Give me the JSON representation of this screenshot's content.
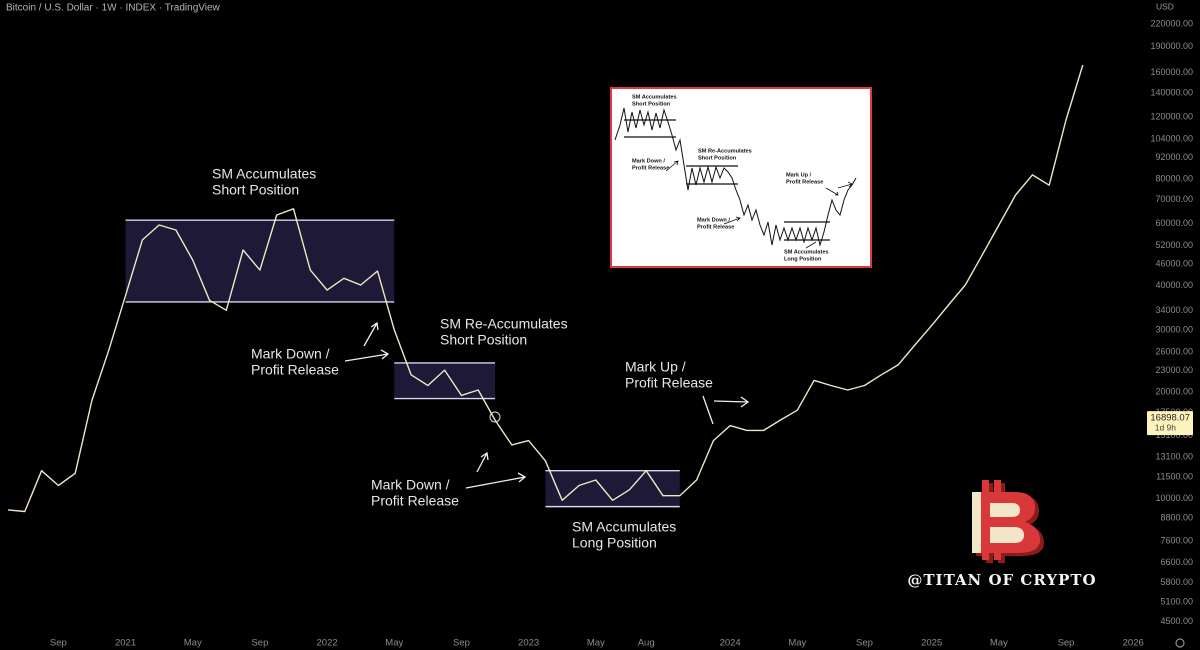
{
  "chart_data": {
    "type": "line",
    "title": "Bitcoin / U.S. Dollar · 1W · INDEX · TradingView",
    "ylabel": "USD",
    "log_scale": true,
    "color": "#efe7c4",
    "x": [
      "2020-06",
      "2020-07",
      "2020-08",
      "2020-09",
      "2020-10",
      "2020-11",
      "2020-12",
      "2021-01",
      "2021-02",
      "2021-03",
      "2021-04",
      "2021-05",
      "2021-06",
      "2021-07",
      "2021-08",
      "2021-09",
      "2021-10",
      "2021-11",
      "2021-12",
      "2022-01",
      "2022-02",
      "2022-03",
      "2022-04",
      "2022-05",
      "2022-06",
      "2022-07",
      "2022-08",
      "2022-09",
      "2022-10",
      "2022-11",
      "2022-12",
      "2023-01",
      "2023-02",
      "2023-03",
      "2023-04",
      "2023-05",
      "2023-06",
      "2023-07",
      "2023-08",
      "2023-09",
      "2023-10",
      "2023-11",
      "2023-12",
      "2024-01",
      "2024-02",
      "2024-03",
      "2024-04",
      "2024-05",
      "2024-06",
      "2024-07",
      "2024-08",
      "2024-09",
      "2024-10",
      "2024-11",
      "2024-12",
      "2025-01",
      "2025-02",
      "2025-03",
      "2025-04",
      "2025-05",
      "2025-06",
      "2025-07",
      "2025-08",
      "2025-09",
      "2025-10"
    ],
    "values": [
      9300,
      9200,
      12000,
      10900,
      11800,
      19000,
      26300,
      37600,
      53900,
      59400,
      57500,
      47300,
      36400,
      34100,
      50500,
      44300,
      63400,
      66000,
      44300,
      38900,
      42000,
      40200,
      44000,
      30000,
      22400,
      20900,
      23100,
      19600,
      20300,
      16700,
      14200,
      14600,
      12800,
      9900,
      10900,
      11300,
      9900,
      10600,
      12000,
      10200,
      10200,
      11300,
      14600,
      16100,
      15600,
      15600,
      16700,
      17800,
      21600,
      20900,
      20300,
      20900,
      22400,
      23900,
      27200,
      30900,
      35300,
      40200,
      48800,
      59400,
      72200,
      82300,
      77000,
      117700,
      168300
    ],
    "xlim": [
      "2020-06",
      "2026-02"
    ],
    "xticks": [
      {
        "value": "2020-09",
        "label": "Sep"
      },
      {
        "value": "2021-01",
        "label": "2021"
      },
      {
        "value": "2021-05",
        "label": "May"
      },
      {
        "value": "2021-09",
        "label": "Sep"
      },
      {
        "value": "2022-01",
        "label": "2022"
      },
      {
        "value": "2022-05",
        "label": "May"
      },
      {
        "value": "2022-09",
        "label": "Sep"
      },
      {
        "value": "2023-01",
        "label": "2023"
      },
      {
        "value": "2023-05",
        "label": "May"
      },
      {
        "value": "2023-08",
        "label": "Aug"
      },
      {
        "value": "2024-01",
        "label": "2024"
      },
      {
        "value": "2024-05",
        "label": "May"
      },
      {
        "value": "2024-09",
        "label": "Sep"
      },
      {
        "value": "2025-01",
        "label": "2025"
      },
      {
        "value": "2025-05",
        "label": "May"
      },
      {
        "value": "2025-09",
        "label": "Sep"
      },
      {
        "value": "2026-01",
        "label": "2026"
      }
    ],
    "ylim": [
      4200,
      257000
    ],
    "yticks": [
      {
        "value": 220000,
        "label": "220000.00"
      },
      {
        "value": 190000,
        "label": "190000.00"
      },
      {
        "value": 160000,
        "label": "160000.00"
      },
      {
        "value": 140000,
        "label": "140000.00"
      },
      {
        "value": 120000,
        "label": "120000.00"
      },
      {
        "value": 104000,
        "label": "104000.00"
      },
      {
        "value": 92000,
        "label": "92000.00"
      },
      {
        "value": 80000,
        "label": "80000.00"
      },
      {
        "value": 70000,
        "label": "70000.00"
      },
      {
        "value": 60000,
        "label": "60000.00"
      },
      {
        "value": 52000,
        "label": "52000.00"
      },
      {
        "value": 46000,
        "label": "46000.00"
      },
      {
        "value": 40000,
        "label": "40000.00"
      },
      {
        "value": 34000,
        "label": "34000.00"
      },
      {
        "value": 30000,
        "label": "30000.00"
      },
      {
        "value": 26000,
        "label": "26000.00"
      },
      {
        "value": 23000,
        "label": "23000.00"
      },
      {
        "value": 20000,
        "label": "20000.00"
      },
      {
        "value": 17500,
        "label": "17500.00"
      },
      {
        "value": 15100,
        "label": "15100.00"
      },
      {
        "value": 13100,
        "label": "13100.00"
      },
      {
        "value": 11500,
        "label": "11500.00"
      },
      {
        "value": 10000,
        "label": "10000.00"
      },
      {
        "value": 8800,
        "label": "8800.00"
      },
      {
        "value": 7600,
        "label": "7600.00"
      },
      {
        "value": 6600,
        "label": "6600.00"
      },
      {
        "value": 5800,
        "label": "5800.00"
      },
      {
        "value": 5100,
        "label": "5100.00"
      },
      {
        "value": 4500,
        "label": "4500.00"
      }
    ],
    "grid": false,
    "last_price": 16898.07,
    "countdown": "1d 9h",
    "zones": [
      {
        "x": [
          "2021-01",
          "2022-05"
        ],
        "range": [
          36000,
          61300
        ],
        "label": [
          "SM Accumulates",
          "Short Position"
        ]
      },
      {
        "x": [
          "2022-05",
          "2022-11"
        ],
        "range": [
          19200,
          24200
        ],
        "label": [
          "SM Re-Accumulates",
          "Short Position"
        ]
      },
      {
        "x": [
          "2023-02",
          "2023-10"
        ],
        "range": [
          9500,
          12000
        ],
        "label": [
          "SM Accumulates",
          "Long Position"
        ]
      }
    ],
    "annotations": [
      [
        "Mark Down /",
        "Profit Release"
      ],
      [
        "Mark Down /",
        "Profit Release"
      ],
      [
        "Mark Up /",
        "Profit Release"
      ]
    ]
  },
  "inset": {
    "labels": [
      [
        "SM Accumulates",
        "Short Position"
      ],
      [
        "SM Re-Accumulates",
        "Short Position"
      ],
      [
        "Mark Down /",
        "Profit Release"
      ],
      [
        "Mark Down /",
        "Profit Release"
      ],
      [
        "Mark Up /",
        "Profit Release"
      ],
      [
        "SM Accumulates",
        "Long Position"
      ]
    ]
  },
  "watermark": "@TITAN OF CRYPTO"
}
